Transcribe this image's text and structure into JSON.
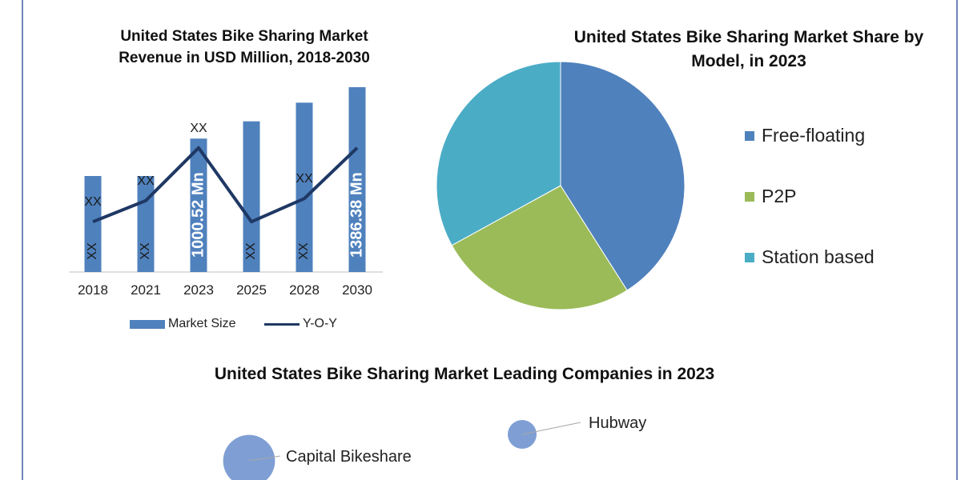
{
  "colors": {
    "bar": "#4f81bd",
    "line": "#1f3864",
    "pie_free_floating": "#4f81bd",
    "pie_p2p": "#9bbb59",
    "pie_station_based": "#4bacc6",
    "bubble": "#7f9fd4"
  },
  "revenue_chart": {
    "title": "United States Bike Sharing Market Revenue in USD Million, 2018-2030",
    "legend": {
      "bar_label": "Market Size",
      "line_label": "Y-O-Y"
    }
  },
  "share_chart": {
    "title": "United States Bike Sharing Market Share by Model, in 2023"
  },
  "companies_chart": {
    "title": "United States Bike Sharing Market Leading Companies in 2023"
  },
  "chart_data": [
    {
      "type": "bar",
      "title": "United States Bike Sharing Market Revenue in USD Million, 2018-2030",
      "categories": [
        "2018",
        "2021",
        "2023",
        "2025",
        "2028",
        "2030"
      ],
      "series": [
        {
          "name": "Market Size",
          "type": "bar",
          "values": [
            720,
            720,
            1000.52,
            1130,
            1270,
            1386.38
          ],
          "data_labels": [
            "XX",
            "XX",
            "1000.52 Mn",
            "XX",
            "XX",
            "1386.38 Mn"
          ]
        },
        {
          "name": "Y-O-Y",
          "type": "line",
          "values": [
            0.4,
            0.6,
            1.1,
            0.4,
            0.62,
            1.1
          ],
          "data_labels": [
            "XX",
            "XX",
            "XX",
            "",
            "XX",
            ""
          ]
        }
      ]
    },
    {
      "type": "pie",
      "title": "United States Bike Sharing Market Share by Model, in 2023",
      "labels": [
        "Free-floating",
        "P2P",
        "Station based"
      ],
      "values": [
        41,
        26,
        33
      ],
      "legend_position": "right"
    },
    {
      "type": "scatter",
      "title": "United States Bike Sharing Market Leading Companies in 2023",
      "points": [
        {
          "label": "Hubway",
          "size": 1
        },
        {
          "label": "Capital Bikeshare",
          "size": 1.8
        }
      ]
    }
  ]
}
